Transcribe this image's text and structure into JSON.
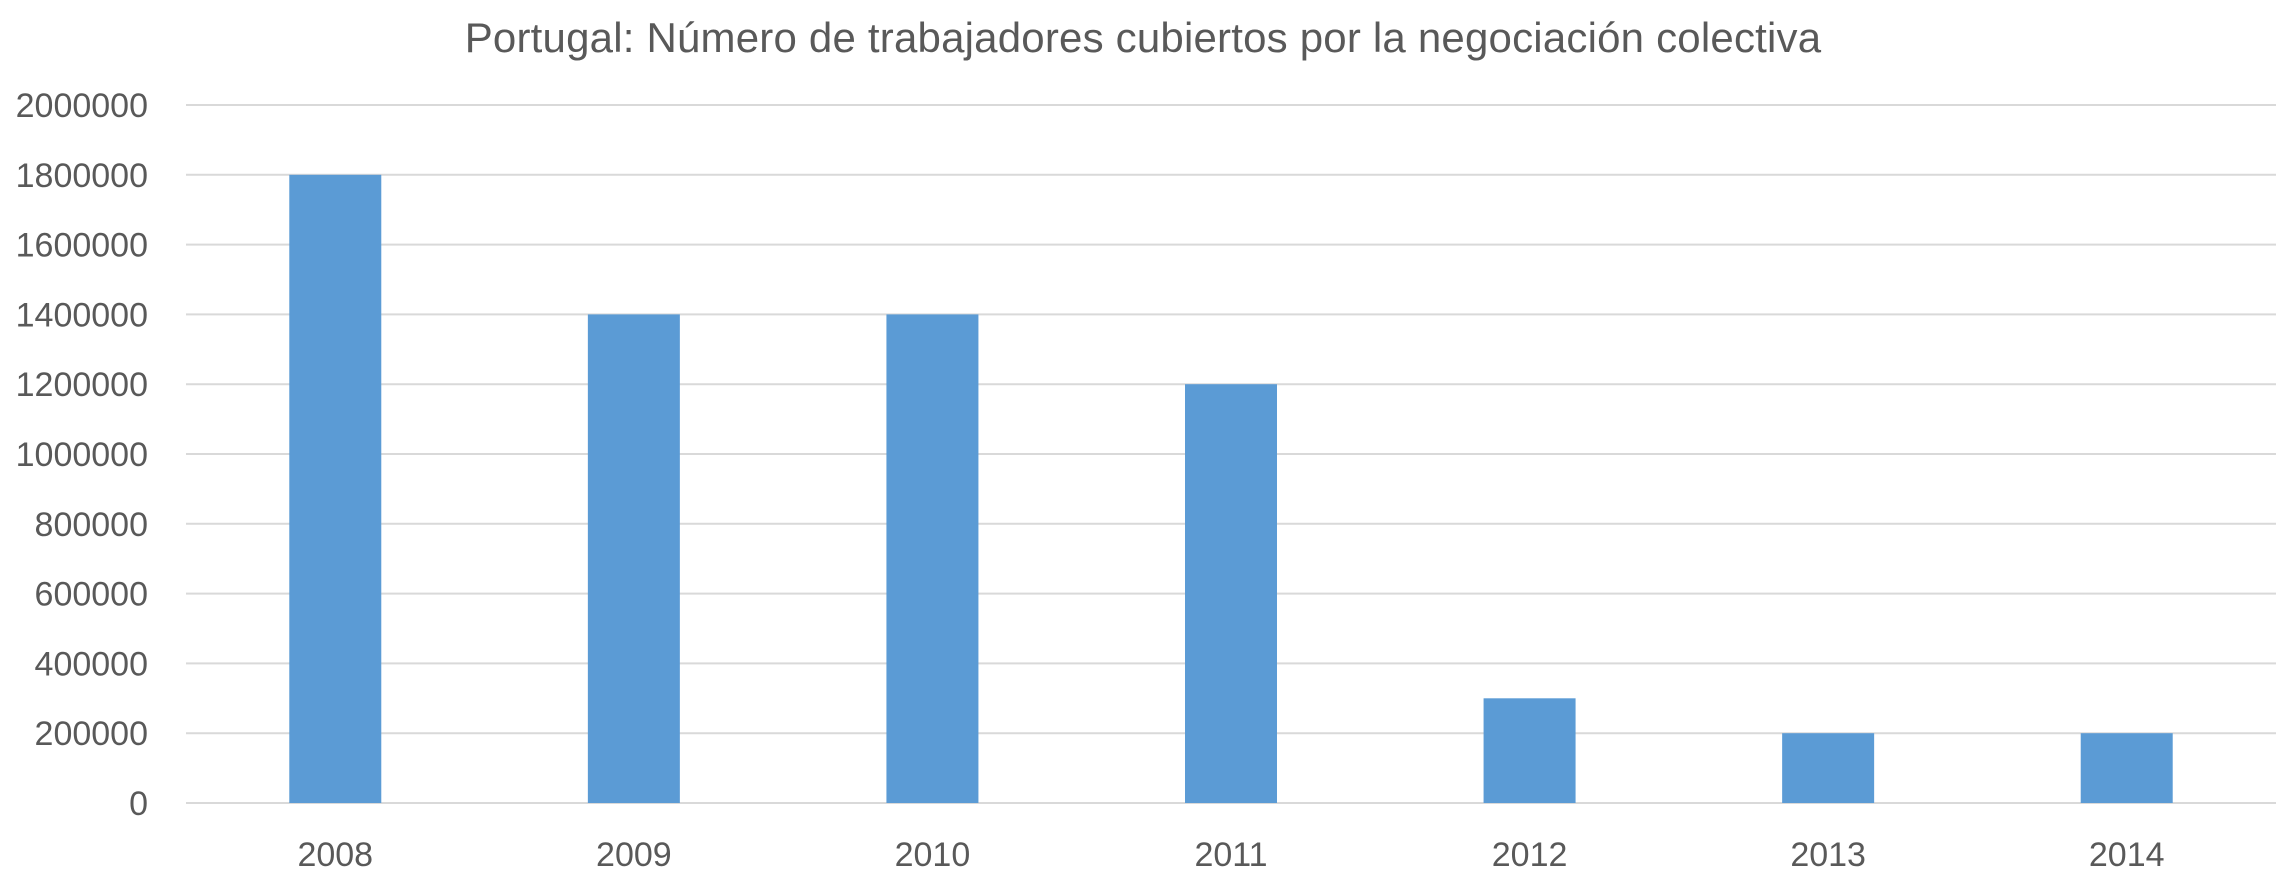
{
  "chart_data": {
    "type": "bar",
    "title": "Portugal: Número de trabajadores cubiertos por la negociación colectiva",
    "xlabel": "",
    "ylabel": "",
    "categories": [
      "2008",
      "2009",
      "2010",
      "2011",
      "2012",
      "2013",
      "2014"
    ],
    "values": [
      1800000,
      1400000,
      1400000,
      1200000,
      300000,
      200000,
      200000
    ],
    "ylim": [
      0,
      2000000
    ],
    "yticks": [
      "0",
      "200000",
      "400000",
      "600000",
      "800000",
      "1000000",
      "1200000",
      "1400000",
      "1600000",
      "1800000",
      "2000000"
    ],
    "grid": true,
    "legend": "none",
    "bar_color": "#5B9BD5"
  }
}
